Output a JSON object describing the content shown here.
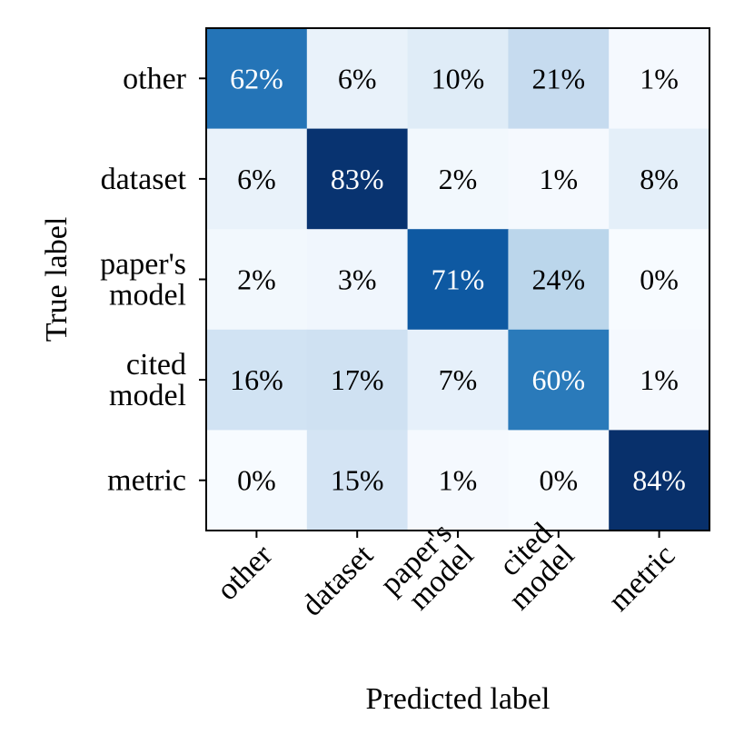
{
  "chart_data": {
    "type": "heatmap",
    "title": "",
    "xlabel": "Predicted label",
    "ylabel": "True label",
    "x_categories": [
      [
        "other"
      ],
      [
        "dataset"
      ],
      [
        "paper's",
        "model"
      ],
      [
        "cited",
        "model"
      ],
      [
        "metric"
      ]
    ],
    "y_categories": [
      [
        "other"
      ],
      [
        "dataset"
      ],
      [
        "paper's",
        "model"
      ],
      [
        "cited",
        "model"
      ],
      [
        "metric"
      ]
    ],
    "values": [
      [
        62,
        6,
        10,
        21,
        1
      ],
      [
        6,
        83,
        2,
        1,
        8
      ],
      [
        2,
        3,
        71,
        24,
        0
      ],
      [
        16,
        17,
        7,
        60,
        1
      ],
      [
        0,
        15,
        1,
        0,
        84
      ]
    ],
    "value_suffix": "%",
    "vmin": 0,
    "vmax": 84,
    "colormap": "Blues",
    "colorbar": false,
    "grid": false
  }
}
